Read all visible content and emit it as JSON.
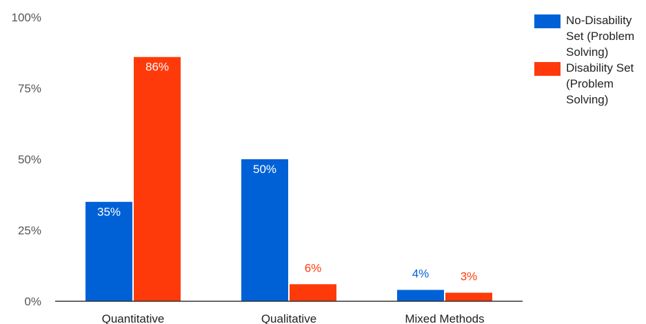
{
  "chart_data": {
    "type": "bar",
    "categories": [
      "Quantitative",
      "Qualitative",
      "Mixed Methods"
    ],
    "series": [
      {
        "name": "No-Disability Set (Problem Solving)",
        "values": [
          35,
          50,
          4
        ],
        "labels": [
          "35%",
          "50%",
          "4%"
        ],
        "color": "#0061d6"
      },
      {
        "name": "Disability Set (Problem Solving)",
        "values": [
          86,
          6,
          3
        ],
        "labels": [
          "86%",
          "6%",
          "3%"
        ],
        "color": "#ff3a0a"
      }
    ],
    "yticks": [
      "0%",
      "25%",
      "50%",
      "75%",
      "100%"
    ],
    "ylim": [
      0,
      100
    ],
    "title": "",
    "xlabel": "",
    "ylabel": "",
    "grid": false,
    "legend_position": "top-right"
  }
}
